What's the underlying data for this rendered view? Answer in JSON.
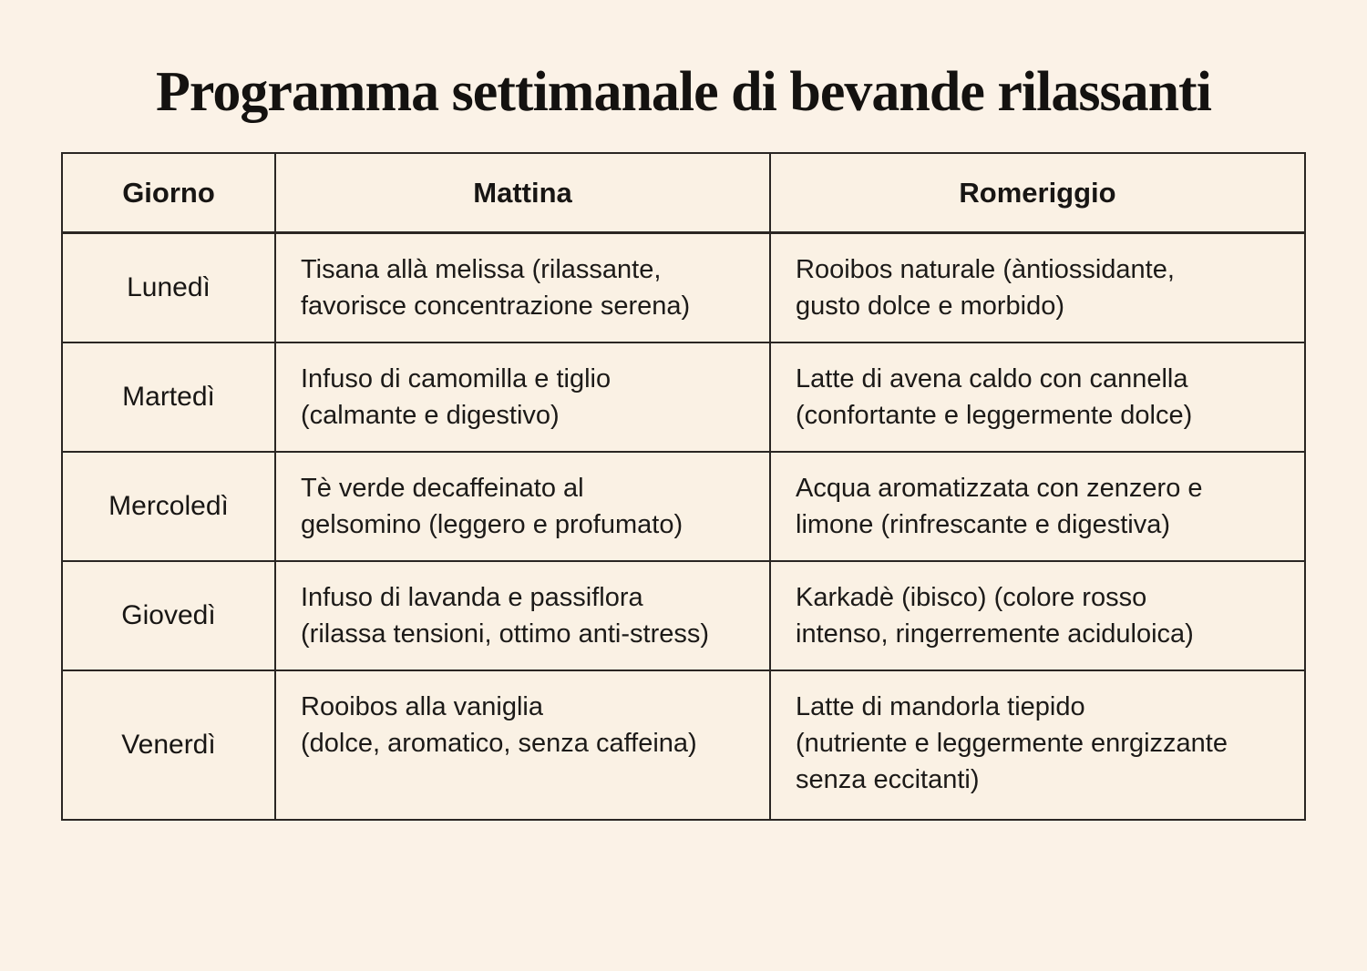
{
  "page": {
    "background_color": "#fbf2e7",
    "cell_background_color": "#faf1e4",
    "border_color": "#2a2623",
    "text_color": "#1c1a18"
  },
  "title": "Programma settimanale di bevande rilassanti",
  "table": {
    "headers": [
      "Giorno",
      "Mattina",
      "Romeriggio"
    ],
    "rows": [
      {
        "day": "Lunedì",
        "morning": [
          "Tisana allà melissa (rilassante,",
          "favorisce concentrazione serena)"
        ],
        "afternoon": [
          "Rooibos naturale (àntiossidante,",
          "gusto dolce e morbido)"
        ]
      },
      {
        "day": "Martedì",
        "morning": [
          "Infuso di camomilla e tiglio",
          "(calmante e digestivo)"
        ],
        "afternoon": [
          "Latte di avena caldo con cannella",
          "(confortante e leggermente dolce)"
        ]
      },
      {
        "day": "Mercoledì",
        "morning": [
          "Tè verde decaffeinato al",
          "gelsomino (leggero e profumato)"
        ],
        "afternoon": [
          "Acqua aromatizzata con zenzero e",
          "limone (rinfrescante e digestiva)"
        ]
      },
      {
        "day": "Giovedì",
        "morning": [
          "Infuso di lavanda e passiflora",
          "(rilassa tensioni, ottimo anti-stress)"
        ],
        "afternoon": [
          "Karkadè (ibisco) (colore rosso",
          "intenso, ringerremente aciduloica)"
        ]
      },
      {
        "day": "Venerdì",
        "morning": [
          "Rooibos alla vaniglia",
          "(dolce, aromatico, senza caffeina)"
        ],
        "afternoon": [
          "Latte di mandorla tiepido",
          "(nutriente e leggermente enrgizzante",
          "senza eccitanti)"
        ]
      }
    ]
  }
}
